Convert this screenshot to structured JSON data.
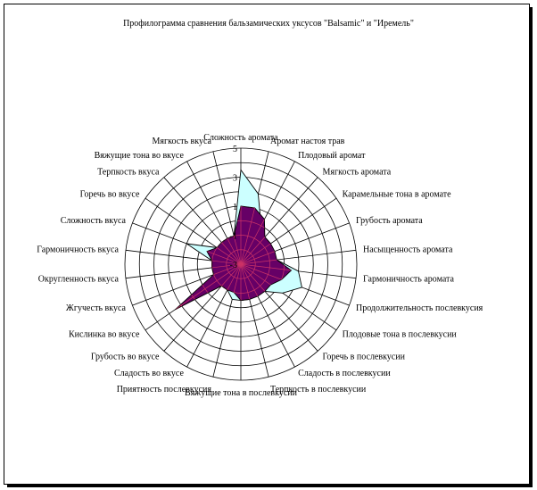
{
  "chart_data": {
    "type": "radar",
    "title": "Профилограмма сравнения бальзамических уксусов \"Balsamic\" и \"Иремель\"",
    "rlim": [
      -3,
      5
    ],
    "ticks": [
      "5",
      "3",
      "1",
      "-1",
      "-3"
    ],
    "tick_values": [
      5,
      3,
      1,
      -1,
      -3
    ],
    "grid": true,
    "legend": "none",
    "categories": [
      "Сложность аромата",
      "Аромат настоя трав",
      "Плодовый аромат",
      "Мягкость аромата",
      "Карамельные тона в аромате",
      "Грубость аромата",
      "Насыщенность аромата",
      "Гармоничность аромата",
      "Продолжительность послевкусия",
      "Плодовые тона в послевкусии",
      "Горечь в послевкусии",
      "Сладость в послевкусии",
      "Терпкость в послевкусии",
      "Вяжущие тона в послевкусии",
      "Приятность послевкусия",
      "Сладость во вкусе",
      "Грубость во вкусе",
      "Кислинка во вкусе",
      "Жгучесть вкуса",
      "Округленность вкуса",
      "Гармоничность вкуса",
      "Сложность вкуса",
      "Горечь во вкусе",
      "Терпкость вкуса",
      "Вяжущие тона во вкусе",
      "Мягкость вкуса"
    ],
    "series": [
      {
        "color": "#ccffff",
        "stroke": "#000000",
        "values": [
          3.5,
          2.0,
          0.0,
          -0.5,
          -0.5,
          -1.0,
          -0.5,
          1.0,
          1.5,
          0.5,
          -0.5,
          -1.0,
          -0.5,
          -0.5,
          -0.5,
          -1.0,
          -1.0,
          -1.0,
          -1.0,
          -1.0,
          -1.0,
          1.0,
          -1.0,
          -1.0,
          -1.0,
          -1.0
        ]
      },
      {
        "color": "#660066",
        "stroke": "#000000",
        "values": [
          1.0,
          1.0,
          0.5,
          -0.5,
          -0.5,
          -0.5,
          -0.5,
          0.5,
          0.0,
          -0.5,
          -0.5,
          -0.5,
          -0.5,
          -0.5,
          -1.0,
          -1.0,
          -1.0,
          2.5,
          -1.0,
          -1.0,
          -1.0,
          -0.5,
          -1.0,
          -1.0,
          -1.0,
          -1.0
        ]
      }
    ]
  }
}
